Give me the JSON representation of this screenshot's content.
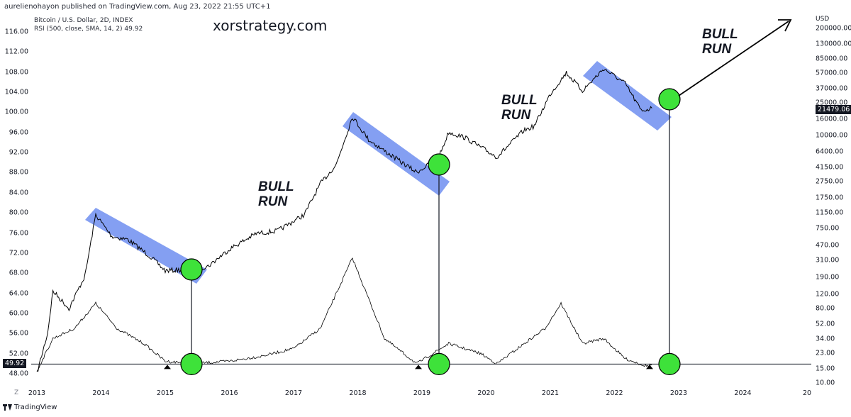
{
  "header": {
    "published": "aurelienohayon published on TradingView.com, Aug 23, 2022 21:55 UTC+1",
    "ticker": "Bitcoin / U.S. Dollar, 2D, INDEX",
    "rsi": "RSI (500, close, SMA, 14, 2)  49.92",
    "watermark": "xorstrategy.com"
  },
  "annotations": {
    "bull_line1": "BULL",
    "bull_line2": "RUN"
  },
  "footer": {
    "logo": "TradingView",
    "z": "Z"
  },
  "badges": {
    "price": "21479.06",
    "rsi": "49.92",
    "usd": "USD"
  },
  "colors": {
    "channel": "#6f8ef0",
    "circle": "#3ee23a",
    "line": "#131722"
  },
  "chart_data": {
    "type": "line",
    "title": "Bitcoin / U.S. Dollar, 2D, INDEX",
    "left_axis_label": "RSI",
    "right_axis_label": "USD",
    "right_axis_scale": "log",
    "left_ticks": [
      "116.00",
      "112.00",
      "108.00",
      "104.00",
      "100.00",
      "96.00",
      "92.00",
      "88.00",
      "84.00",
      "80.00",
      "76.00",
      "72.00",
      "68.00",
      "64.00",
      "60.00",
      "56.00",
      "52.00",
      "48.00"
    ],
    "right_ticks": [
      "200000.00",
      "130000.00",
      "85000.00",
      "57000.00",
      "37000.00",
      "25000.00",
      "16000.00",
      "10000.00",
      "6400.00",
      "4150.00",
      "2750.00",
      "1750.00",
      "1150.00",
      "750.00",
      "470.00",
      "310.00",
      "190.00",
      "120.00",
      "80.00",
      "52.00",
      "34.00",
      "23.00",
      "15.00",
      "10.00"
    ],
    "x_ticks": [
      "2013",
      "2014",
      "2015",
      "2016",
      "2017",
      "2018",
      "2019",
      "2020",
      "2021",
      "2022",
      "2023",
      "2024",
      "20"
    ],
    "price_series": {
      "name": "Bitcoin / U.S. Dollar",
      "x": [
        "2013-01",
        "2013-03",
        "2013-04",
        "2013-07",
        "2013-10",
        "2013-12",
        "2014-03",
        "2014-06",
        "2014-10",
        "2015-01",
        "2015-06",
        "2015-09",
        "2016-01",
        "2016-06",
        "2016-10",
        "2017-03",
        "2017-06",
        "2017-09",
        "2017-12",
        "2018-03",
        "2018-06",
        "2018-12",
        "2019-04",
        "2019-06",
        "2019-09",
        "2020-03",
        "2020-08",
        "2020-10",
        "2021-01",
        "2021-04",
        "2021-07",
        "2021-11",
        "2022-03",
        "2022-06",
        "2022-08"
      ],
      "y": [
        13,
        40,
        130,
        80,
        200,
        1100,
        600,
        550,
        350,
        230,
        240,
        260,
        420,
        650,
        700,
        1100,
        2600,
        4500,
        17000,
        9000,
        6500,
        3600,
        5200,
        11000,
        9500,
        5500,
        11500,
        13000,
        32000,
        58000,
        35000,
        65000,
        43000,
        20000,
        21479
      ]
    },
    "rsi_series": {
      "name": "RSI",
      "x": [
        "2013-01",
        "2013-04",
        "2013-08",
        "2013-12",
        "2014-04",
        "2014-09",
        "2015-01",
        "2015-06",
        "2016-01",
        "2016-07",
        "2017-01",
        "2017-06",
        "2017-12",
        "2018-06",
        "2018-12",
        "2019-06",
        "2019-12",
        "2020-03",
        "2020-12",
        "2021-03",
        "2021-07",
        "2021-11",
        "2022-03",
        "2022-07",
        "2022-08"
      ],
      "y": [
        48.5,
        55,
        57,
        62,
        57,
        54,
        50.5,
        50,
        50.5,
        51.5,
        53,
        57,
        71,
        55,
        50,
        54,
        52,
        50,
        57,
        62,
        54,
        55,
        51,
        49.5,
        49.92
      ]
    },
    "rsi_level": 49.92
  }
}
